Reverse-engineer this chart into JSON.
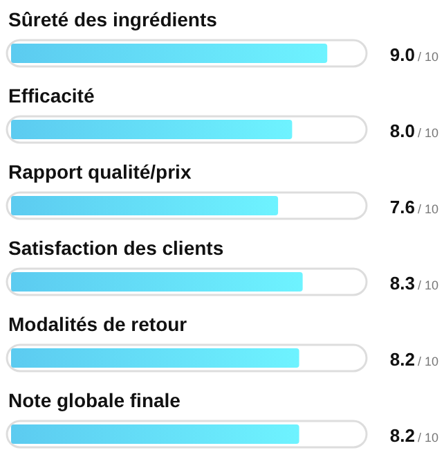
{
  "chart_data": {
    "type": "bar",
    "orientation": "horizontal",
    "categories": [
      "Sûreté des ingrédients",
      "Efficacité",
      "Rapport qualité/prix",
      "Satisfaction des clients",
      "Modalités de retour",
      "Note globale finale"
    ],
    "values": [
      9.0,
      8.0,
      7.6,
      8.3,
      8.2,
      8.2
    ],
    "color": "#5ccbf0",
    "xlim": [
      0,
      10
    ],
    "value_labels": [
      "9.0",
      "8.0",
      "7.6",
      "8.3",
      "8.2",
      "8.2"
    ],
    "annotations": [
      "/ 10",
      "/ 10",
      "/ 10",
      "/ 10",
      "/ 10",
      "/ 10"
    ]
  }
}
